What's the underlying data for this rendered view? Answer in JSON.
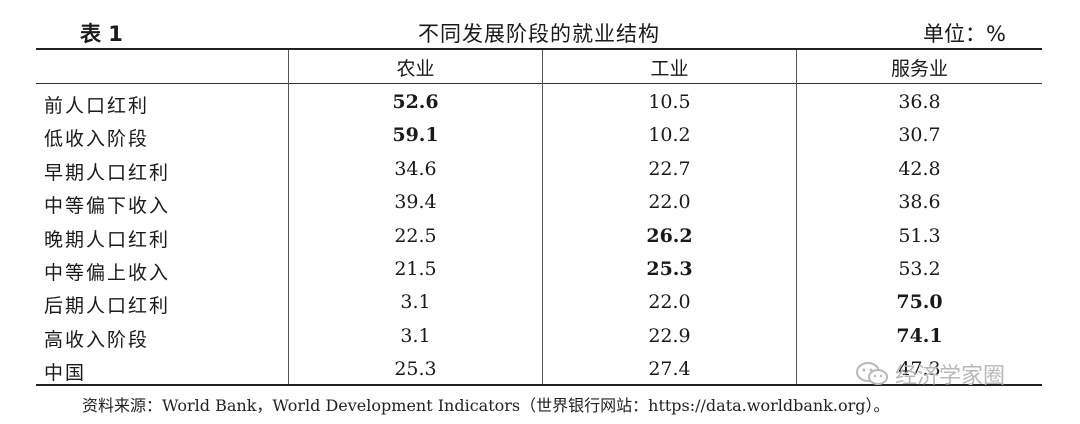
{
  "table": {
    "label": "表 1",
    "title": "不同发展阶段的就业结构",
    "unit": "单位：%",
    "columns": [
      "农业",
      "工业",
      "服务业"
    ],
    "rows": [
      {
        "stage": "前人口红利",
        "agriculture": "52.6",
        "industry": "10.5",
        "services": "36.8",
        "bold": "agriculture"
      },
      {
        "stage": "低收入阶段",
        "agriculture": "59.1",
        "industry": "10.2",
        "services": "30.7",
        "bold": "agriculture"
      },
      {
        "stage": "早期人口红利",
        "agriculture": "34.6",
        "industry": "22.7",
        "services": "42.8",
        "bold": ""
      },
      {
        "stage": "中等偏下收入",
        "agriculture": "39.4",
        "industry": "22.0",
        "services": "38.6",
        "bold": ""
      },
      {
        "stage": "晚期人口红利",
        "agriculture": "22.5",
        "industry": "26.2",
        "services": "51.3",
        "bold": "industry"
      },
      {
        "stage": "中等偏上收入",
        "agriculture": "21.5",
        "industry": "25.3",
        "services": "53.2",
        "bold": "industry"
      },
      {
        "stage": "后期人口红利",
        "agriculture": "3.1",
        "industry": "22.0",
        "services": "75.0",
        "bold": "services"
      },
      {
        "stage": "高收入阶段",
        "agriculture": "3.1",
        "industry": "22.9",
        "services": "74.1",
        "bold": "services"
      },
      {
        "stage": "中国",
        "agriculture": "25.3",
        "industry": "27.4",
        "services": "47.3",
        "bold": ""
      }
    ],
    "source": "资料来源：World Bank，World Development Indicators（世界银行网站：https://data.worldbank.org）。"
  },
  "watermark": {
    "text": "经济学家圈",
    "icon": "wechat-icon"
  }
}
